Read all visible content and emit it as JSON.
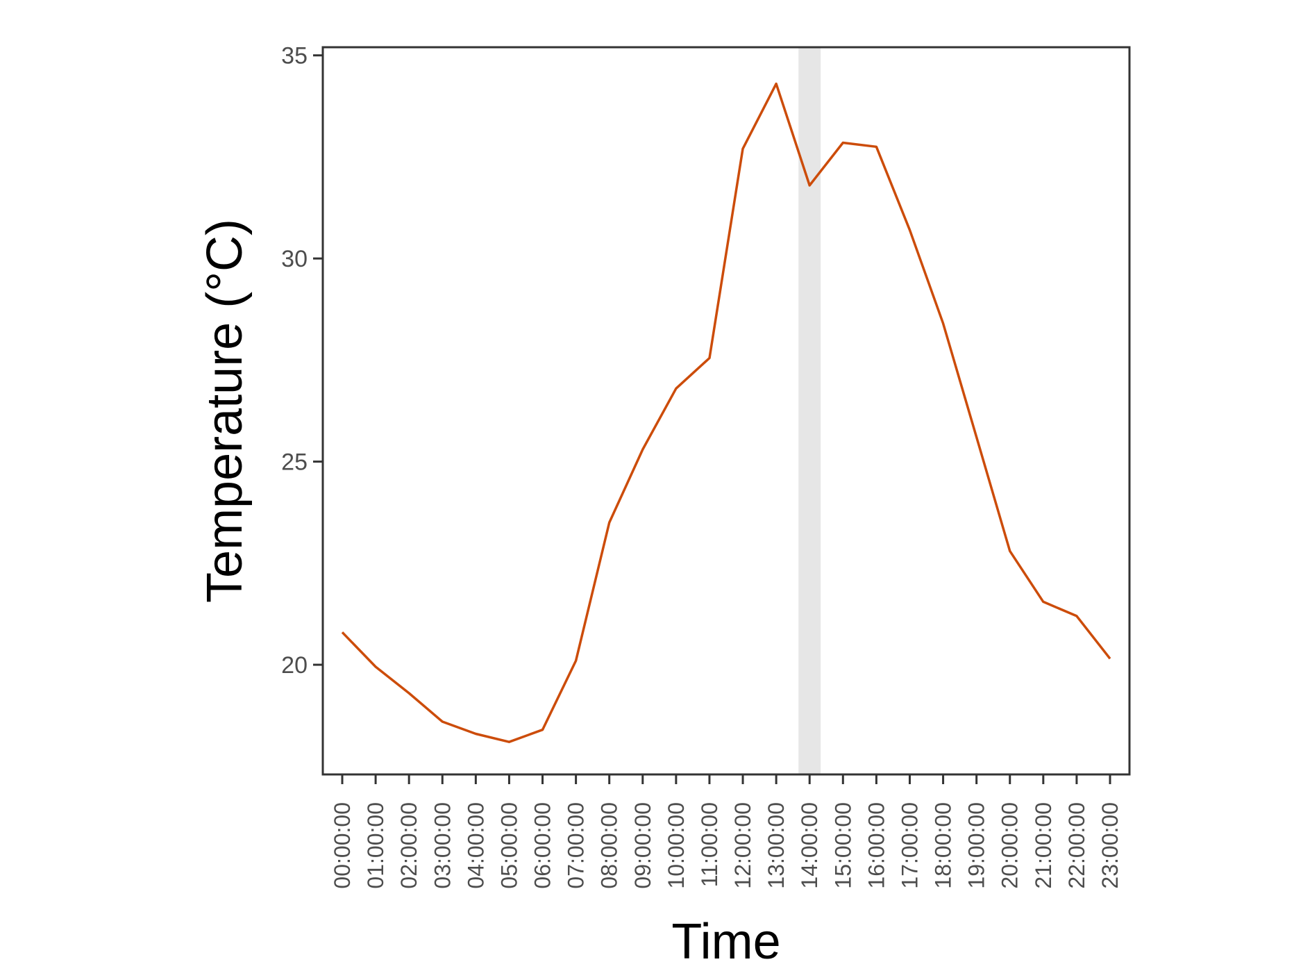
{
  "chart_data": {
    "type": "line",
    "xlabel": "Time",
    "ylabel": "Temperature (°C)",
    "ylim": [
      17.3,
      35.2
    ],
    "yticks": [
      20,
      25,
      30,
      35
    ],
    "grid": false,
    "legend": "none",
    "categories": [
      "00:00:00",
      "01:00:00",
      "02:00:00",
      "03:00:00",
      "04:00:00",
      "05:00:00",
      "06:00:00",
      "07:00:00",
      "08:00:00",
      "09:00:00",
      "10:00:00",
      "11:00:00",
      "12:00:00",
      "13:00:00",
      "14:00:00",
      "15:00:00",
      "16:00:00",
      "17:00:00",
      "18:00:00",
      "19:00:00",
      "20:00:00",
      "21:00:00",
      "22:00:00",
      "23:00:00"
    ],
    "series": [
      {
        "values": [
          20.8,
          19.95,
          19.3,
          18.6,
          18.3,
          18.1,
          18.4,
          20.1,
          23.5,
          25.3,
          26.8,
          27.55,
          32.7,
          34.3,
          31.8,
          32.85,
          32.75,
          30.7,
          28.4,
          25.6,
          22.8,
          21.55,
          21.2,
          20.15
        ],
        "color": "#cc4c0a"
      }
    ],
    "highlight_band": {
      "category": "14:00:00",
      "color": "#e6e6e6"
    }
  }
}
